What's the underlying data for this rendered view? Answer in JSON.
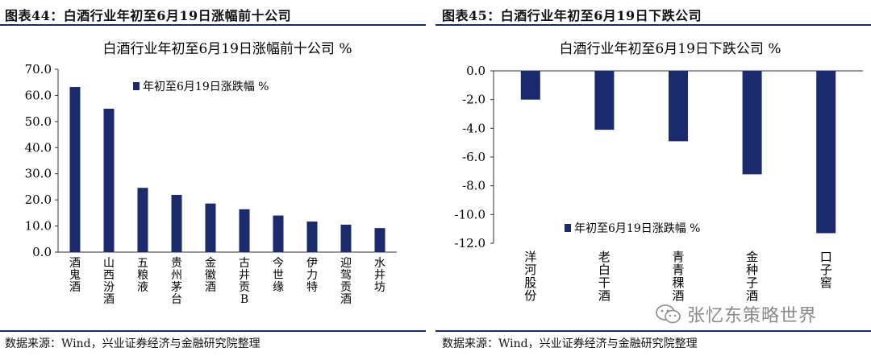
{
  "left": {
    "figure_title": "图表44：白酒行业年初至6月19日涨幅前十公司",
    "source": "数据来源：Wind，兴业证券经济与金融研究院整理"
  },
  "right": {
    "figure_title": "图表45：白酒行业年初至6月19日下跌公司",
    "source": "数据来源：Wind，兴业证券经济与金融研究院整理"
  },
  "watermark": {
    "text": "张忆东策略世界"
  },
  "colors": {
    "bar": "#1a2a6c",
    "rule": "#1a2a6c"
  },
  "chart_data": [
    {
      "type": "bar",
      "title": "白酒行业年初至6月19日涨幅前十公司 %",
      "legend": {
        "label": "年初至6月19日涨跌幅 %",
        "placement": "top-center"
      },
      "categories": [
        "酒鬼酒",
        "山西汾酒",
        "五粮液",
        "贵州茅台",
        "金徽酒",
        "古井贡B",
        "今世缘",
        "伊力特",
        "迎驾贡酒",
        "水井坊"
      ],
      "values": [
        63.2,
        54.9,
        24.6,
        21.9,
        18.6,
        16.4,
        14.0,
        11.7,
        10.5,
        9.2
      ],
      "yticks": [
        "0.0",
        "10.0",
        "20.0",
        "30.0",
        "40.0",
        "50.0",
        "60.0",
        "70.0"
      ],
      "ylim": [
        0,
        70
      ],
      "grid": false
    },
    {
      "type": "bar",
      "title": "白酒行业年初至6月19日下跌公司 %",
      "legend": {
        "label": "年初至6月19日涨跌幅 %",
        "placement": "bottom-center"
      },
      "categories": [
        "洋河股份",
        "老白干酒",
        "青青稞酒",
        "金种子酒",
        "口子窖"
      ],
      "values": [
        -2.0,
        -4.1,
        -4.9,
        -7.2,
        -11.3
      ],
      "yticks": [
        "0.0",
        "-2.0",
        "-4.0",
        "-6.0",
        "-8.0",
        "-10.0",
        "-12.0"
      ],
      "ylim": [
        -12,
        0
      ],
      "grid": false
    }
  ]
}
